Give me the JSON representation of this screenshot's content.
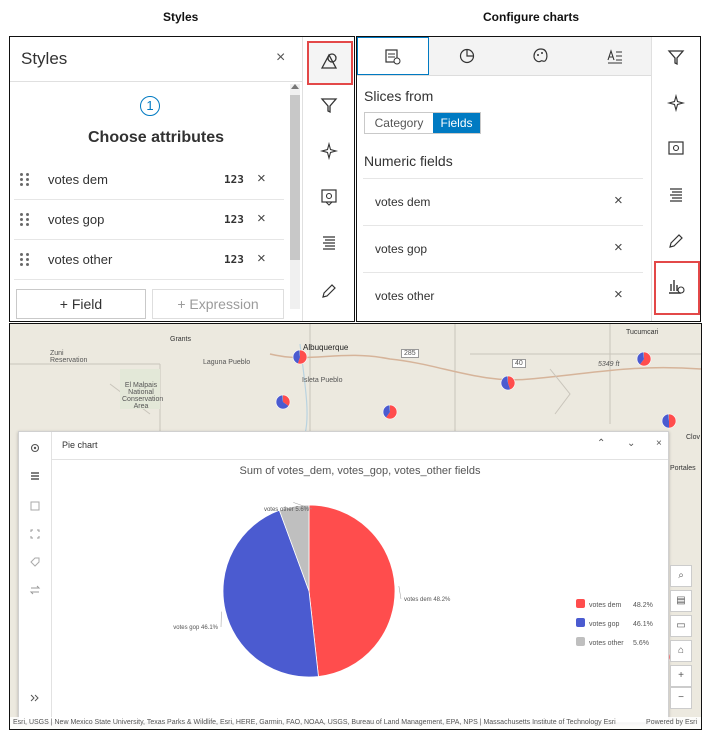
{
  "captions": {
    "left": "Styles",
    "right": "Configure charts"
  },
  "styles_panel": {
    "title": "Styles",
    "close": "×",
    "step_number": "1",
    "step_title": "Choose attributes",
    "attributes": [
      {
        "label": "votes dem",
        "type": "123"
      },
      {
        "label": "votes gop",
        "type": "123"
      },
      {
        "label": "votes other",
        "type": "123"
      }
    ],
    "add_field": "+   Field",
    "add_expression": "+   Expression"
  },
  "config_panel": {
    "slices_from": "Slices from",
    "segment": {
      "category": "Category",
      "fields": "Fields"
    },
    "numeric_fields": "Numeric fields",
    "fields": [
      "votes dem",
      "votes gop",
      "votes other"
    ]
  },
  "map": {
    "places": [
      "Grants",
      "Albuquerque",
      "Zuni Reservation",
      "Laguna Pueblo",
      "El Malpais National Conservation Area",
      "Isleta Pueblo",
      "Tucumcari",
      "Portales",
      "Clov",
      "5349 ft",
      "285",
      "40"
    ],
    "attribution": "Esri, USGS | New Mexico State University, Texas Parks & Wildlife, Esri, HERE, Garmin, FAO, NOAA, USGS, Bureau of Land Management, EPA, NPS | Massachusetts Institute of Technology Esri",
    "powered_by": "Powered by Esri",
    "pie_colors": {
      "dem": "#ff4d4d",
      "gop": "#4b5bd0",
      "other": "#bfbfbf"
    }
  },
  "chart_window": {
    "title": "Pie chart",
    "controls": {
      "up": "⌃",
      "down": "⌄",
      "close": "×"
    }
  },
  "chart_data": {
    "type": "pie",
    "title": "Sum of votes_dem, votes_gop, votes_other fields",
    "slices": [
      {
        "label": "votes dem",
        "value": 48.2,
        "display": "48.2%",
        "color": "#ff4d4d"
      },
      {
        "label": "votes gop",
        "value": 46.1,
        "display": "46.1%",
        "color": "#4b5bd0"
      },
      {
        "label": "votes other",
        "value": 5.6,
        "display": "5.6%",
        "color": "#bfbfbf"
      }
    ],
    "legend_position": "right"
  }
}
